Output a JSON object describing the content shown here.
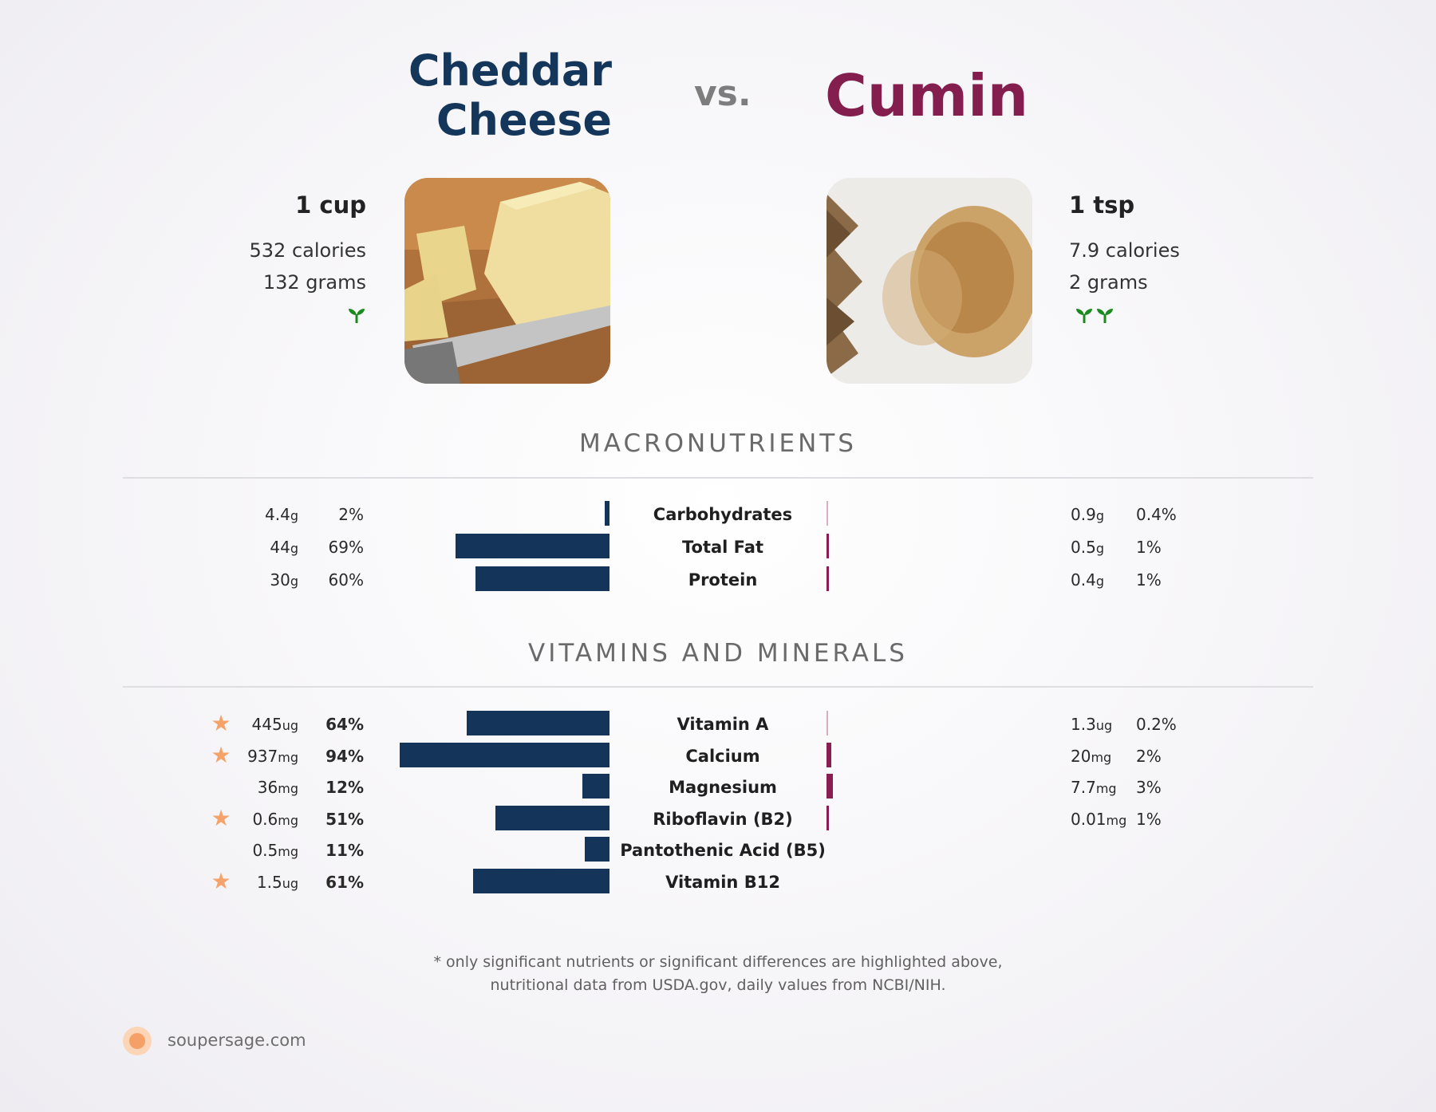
{
  "header": {
    "left_title_line1": "Cheddar",
    "left_title_line2": "Cheese",
    "vs": "vs.",
    "right_title": "Cumin"
  },
  "left_food": {
    "serving": "1 cup",
    "calories": "532 calories",
    "grams": "132 grams",
    "sprout_icons": "f",
    "color": "#14365b"
  },
  "right_food": {
    "serving": "1 tsp",
    "calories": "7.9 calories",
    "grams": "2 grams",
    "color": "#841e4f"
  },
  "sections": {
    "macro_title": "MACRONUTRIENTS",
    "vitamins_title": "VITAMINS AND MINERALS"
  },
  "chart_data": {
    "type": "bar",
    "orientation": "diverging-horizontal",
    "series": [
      {
        "name": "Cheddar Cheese",
        "color": "#14345a"
      },
      {
        "name": "Cumin",
        "color": "#8a1e52"
      }
    ],
    "macronutrients": [
      {
        "name": "Carbohydrates",
        "left_amount": "4.4",
        "left_unit": "g",
        "left_pct": "2%",
        "left_value": 2,
        "left_star": false,
        "right_amount": "0.9",
        "right_unit": "g",
        "right_pct": "0.4%",
        "right_value": 0.4
      },
      {
        "name": "Total Fat",
        "left_amount": "44",
        "left_unit": "g",
        "left_pct": "69%",
        "left_value": 69,
        "left_star": false,
        "right_amount": "0.5",
        "right_unit": "g",
        "right_pct": "1%",
        "right_value": 1
      },
      {
        "name": "Protein",
        "left_amount": "30",
        "left_unit": "g",
        "left_pct": "60%",
        "left_value": 60,
        "left_star": false,
        "right_amount": "0.4",
        "right_unit": "g",
        "right_pct": "1%",
        "right_value": 1
      }
    ],
    "vitamins": [
      {
        "name": "Vitamin A",
        "left_amount": "445",
        "left_unit": "ug",
        "left_pct": "64%",
        "left_value": 64,
        "left_star": true,
        "right_amount": "1.3",
        "right_unit": "ug",
        "right_pct": "0.2%",
        "right_value": 0.2
      },
      {
        "name": "Calcium",
        "left_amount": "937",
        "left_unit": "mg",
        "left_pct": "94%",
        "left_value": 94,
        "left_star": true,
        "right_amount": "20",
        "right_unit": "mg",
        "right_pct": "2%",
        "right_value": 2
      },
      {
        "name": "Magnesium",
        "left_amount": "36",
        "left_unit": "mg",
        "left_pct": "12%",
        "left_value": 12,
        "left_star": false,
        "right_amount": "7.7",
        "right_unit": "mg",
        "right_pct": "3%",
        "right_value": 3
      },
      {
        "name": "Riboflavin (B2)",
        "left_amount": "0.6",
        "left_unit": "mg",
        "left_pct": "51%",
        "left_value": 51,
        "left_star": true,
        "right_amount": "0.01",
        "right_unit": "mg",
        "right_pct": "1%",
        "right_value": 1
      },
      {
        "name": "Pantothenic Acid (B5)",
        "left_amount": "0.5",
        "left_unit": "mg",
        "left_pct": "11%",
        "left_value": 11,
        "left_star": false,
        "right_amount": null,
        "right_unit": null,
        "right_pct": null,
        "right_value": null
      },
      {
        "name": "Vitamin B12",
        "left_amount": "1.5",
        "left_unit": "ug",
        "left_pct": "61%",
        "left_value": 61,
        "left_star": true,
        "right_amount": null,
        "right_unit": null,
        "right_pct": null,
        "right_value": null
      }
    ]
  },
  "footer": {
    "note_line1": "* only significant nutrients or significant differences are highlighted above,",
    "note_line2": "nutritional data from USDA.gov, daily values from NCBI/NIH.",
    "site": "soupersage.com"
  }
}
